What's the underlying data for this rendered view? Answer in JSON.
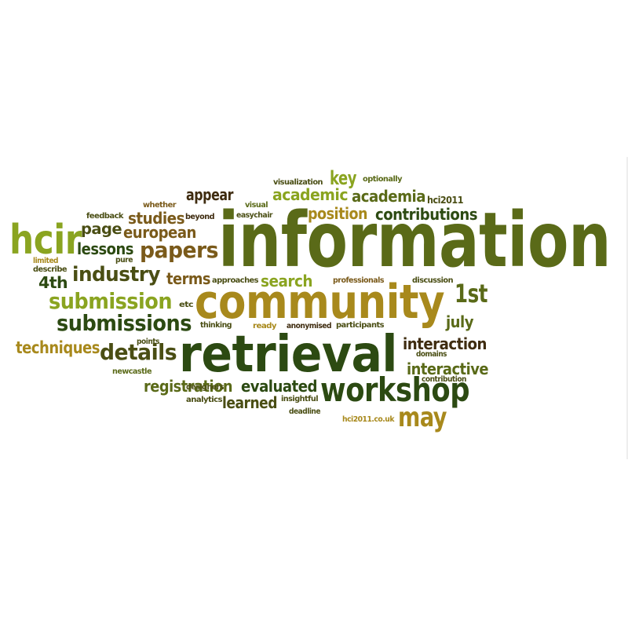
{
  "cloud": {
    "colors": {
      "dark_green": "#2c4a12",
      "olive": "#5a6a18",
      "brown": "#7a5a1a",
      "gold": "#a8891c",
      "lime": "#8aa420",
      "dark_olive": "#4a4e14",
      "dark_brown": "#3f2c10"
    },
    "words": [
      {
        "text": "information",
        "color": "olive"
      },
      {
        "text": "community",
        "color": "gold"
      },
      {
        "text": "retrieval",
        "color": "dark_green"
      },
      {
        "text": "hcir",
        "color": "lime"
      },
      {
        "text": "workshop",
        "color": "dark_green"
      },
      {
        "text": "submission",
        "color": "lime"
      },
      {
        "text": "submissions",
        "color": "dark_green"
      },
      {
        "text": "papers",
        "color": "brown"
      },
      {
        "text": "industry",
        "color": "dark_olive"
      },
      {
        "text": "details",
        "color": "dark_olive"
      },
      {
        "text": "may",
        "color": "gold"
      },
      {
        "text": "1st",
        "color": "olive"
      },
      {
        "text": "techniques",
        "color": "gold"
      },
      {
        "text": "european",
        "color": "brown"
      },
      {
        "text": "academic",
        "color": "lime"
      },
      {
        "text": "academia",
        "color": "olive"
      },
      {
        "text": "contributions",
        "color": "dark_green"
      },
      {
        "text": "position",
        "color": "gold"
      },
      {
        "text": "appear",
        "color": "dark_brown"
      },
      {
        "text": "key",
        "color": "lime"
      },
      {
        "text": "studies",
        "color": "brown"
      },
      {
        "text": "page",
        "color": "dark_olive"
      },
      {
        "text": "lessons",
        "color": "dark_green"
      },
      {
        "text": "4th",
        "color": "dark_green"
      },
      {
        "text": "terms",
        "color": "brown"
      },
      {
        "text": "search",
        "color": "lime"
      },
      {
        "text": "july",
        "color": "olive"
      },
      {
        "text": "interaction",
        "color": "dark_brown"
      },
      {
        "text": "interactive",
        "color": "olive"
      },
      {
        "text": "registration",
        "color": "olive"
      },
      {
        "text": "evaluated",
        "color": "dark_green"
      },
      {
        "text": "learned",
        "color": "dark_olive"
      },
      {
        "text": "hci2011",
        "color": "dark_olive"
      },
      {
        "text": "visualization",
        "color": "dark_olive"
      },
      {
        "text": "optionally",
        "color": "olive"
      },
      {
        "text": "whether",
        "color": "brown"
      },
      {
        "text": "feedback",
        "color": "dark_olive"
      },
      {
        "text": "beyond",
        "color": "dark_brown"
      },
      {
        "text": "visual",
        "color": "olive"
      },
      {
        "text": "easychair",
        "color": "dark_olive"
      },
      {
        "text": "limited",
        "color": "gold"
      },
      {
        "text": "pure",
        "color": "dark_olive"
      },
      {
        "text": "describe",
        "color": "dark_olive"
      },
      {
        "text": "approaches",
        "color": "dark_olive"
      },
      {
        "text": "professionals",
        "color": "brown"
      },
      {
        "text": "discussion",
        "color": "dark_olive"
      },
      {
        "text": "etc",
        "color": "dark_olive"
      },
      {
        "text": "thinking",
        "color": "dark_olive"
      },
      {
        "text": "ready",
        "color": "gold"
      },
      {
        "text": "anonymised",
        "color": "dark_brown"
      },
      {
        "text": "participants",
        "color": "dark_olive"
      },
      {
        "text": "points",
        "color": "dark_olive"
      },
      {
        "text": "domains",
        "color": "dark_olive"
      },
      {
        "text": "newcastle",
        "color": "olive"
      },
      {
        "text": "contribution",
        "color": "dark_olive"
      },
      {
        "text": "designers",
        "color": "dark_olive"
      },
      {
        "text": "analytics",
        "color": "dark_olive"
      },
      {
        "text": "insightful",
        "color": "dark_olive"
      },
      {
        "text": "deadline",
        "color": "dark_olive"
      },
      {
        "text": "hci2011.co.uk",
        "color": "gold"
      }
    ]
  }
}
